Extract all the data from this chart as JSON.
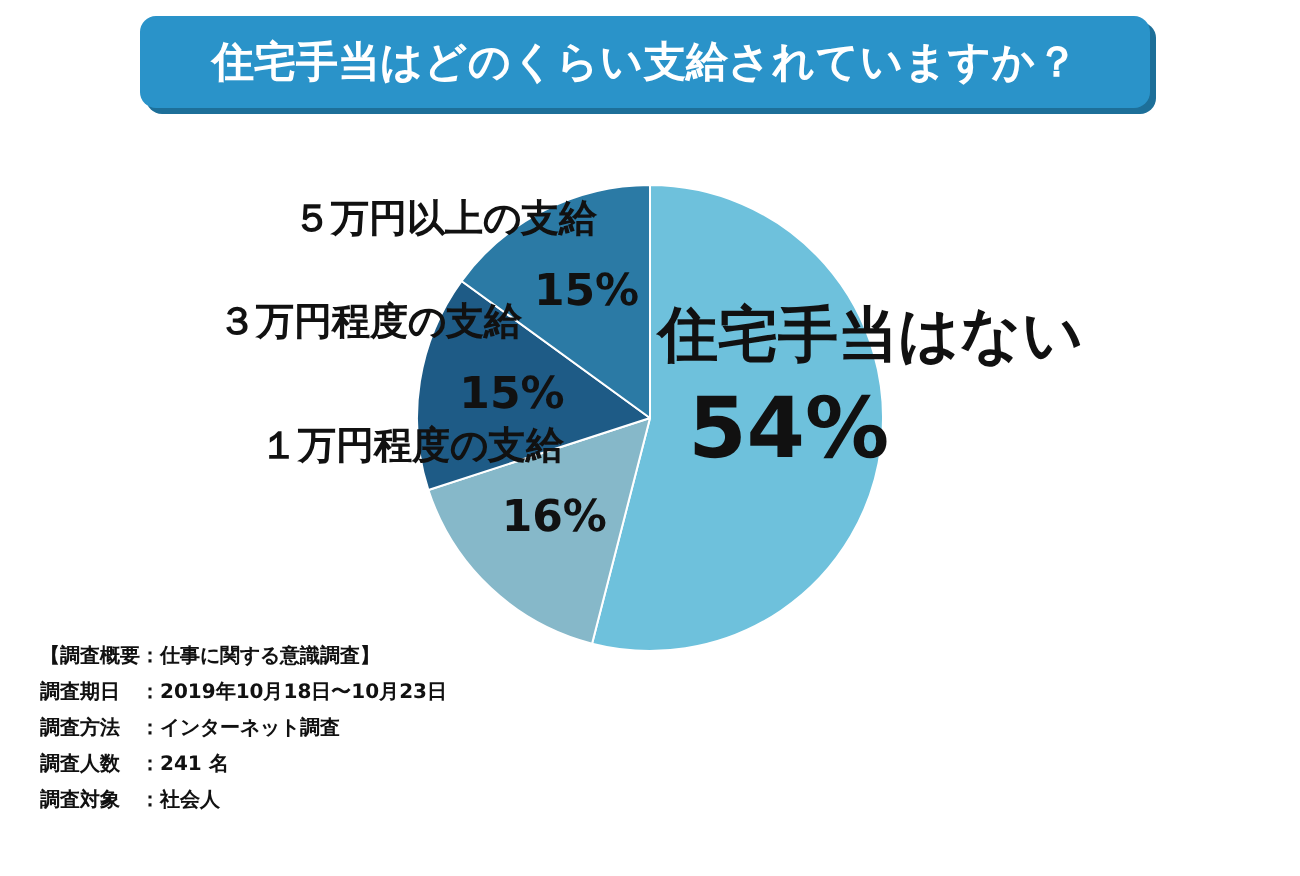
{
  "chart_data": {
    "type": "pie",
    "title": "住宅手当はどのくらい支給されていますか？",
    "categories": [
      "住宅手当はない",
      "１万円程度の支給",
      "３万円程度の支給",
      "５万円以上の支給"
    ],
    "values": [
      54,
      16,
      15,
      15
    ],
    "colors": [
      "#6ec1dc",
      "#86b8c9",
      "#1e5b86",
      "#2b7aa5"
    ],
    "value_labels": [
      "54%",
      "16%",
      "15%",
      "15%"
    ],
    "annotations": [
      "【調査概要：仕事に関する意識調査】",
      "調査期日　：2019年10月18日〜10月23日",
      "調査方法　：インターネット調査",
      "調査人数　：241 名",
      "調査対象　：社会人"
    ]
  }
}
